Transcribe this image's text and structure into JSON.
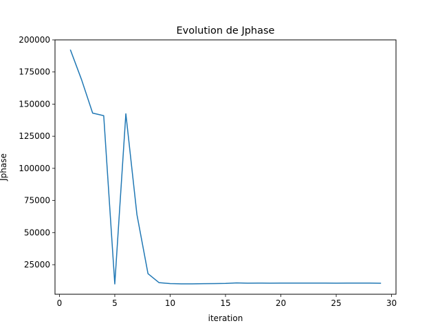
{
  "chart_data": {
    "type": "line",
    "title": "Evolution de Jphase",
    "xlabel": "iteration",
    "ylabel": "Jphase",
    "xlim": [
      -0.4,
      30.4
    ],
    "ylim": [
      2000,
      200000
    ],
    "xticks": [
      0,
      5,
      10,
      15,
      20,
      25,
      30
    ],
    "yticks": [
      25000,
      50000,
      75000,
      100000,
      125000,
      150000,
      175000,
      200000
    ],
    "grid": false,
    "line_color": "#1f77b4",
    "series": [
      {
        "x": [
          1,
          2,
          3,
          4,
          5,
          6,
          7,
          8,
          9,
          10,
          11,
          12,
          13,
          14,
          15,
          16,
          17,
          18,
          19,
          20,
          21,
          22,
          23,
          24,
          25,
          26,
          27,
          28,
          29
        ],
        "y": [
          192000,
          169000,
          143000,
          141000,
          10000,
          142500,
          64000,
          18000,
          11000,
          10300,
          10100,
          10100,
          10200,
          10300,
          10400,
          10800,
          10600,
          10700,
          10600,
          10700,
          10700,
          10700,
          10700,
          10700,
          10600,
          10700,
          10700,
          10700,
          10600
        ]
      }
    ]
  }
}
